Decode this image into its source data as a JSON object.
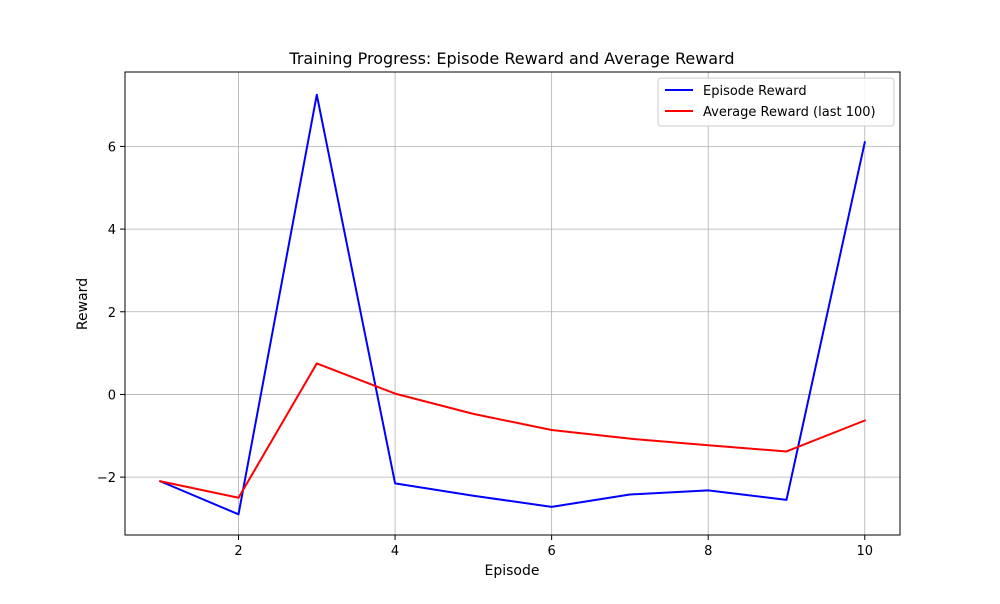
{
  "chart_data": {
    "type": "line",
    "title": "Training Progress: Episode Reward and Average Reward",
    "xlabel": "Episode",
    "ylabel": "Reward",
    "x": [
      1,
      2,
      3,
      4,
      5,
      6,
      7,
      8,
      9,
      10
    ],
    "xlim": [
      0.55,
      10.45
    ],
    "ylim": [
      -3.4,
      7.8
    ],
    "xticks": [
      2,
      4,
      6,
      8,
      10
    ],
    "yticks": [
      -2,
      0,
      2,
      4,
      6
    ],
    "xtick_labels": [
      "2",
      "4",
      "6",
      "8",
      "10"
    ],
    "ytick_labels": [
      "−2",
      "0",
      "2",
      "4",
      "6"
    ],
    "grid": true,
    "legend_position": "top-right",
    "series": [
      {
        "name": "Episode Reward",
        "color": "#0000ff",
        "values": [
          -2.1,
          -2.9,
          7.25,
          -2.15,
          -2.45,
          -2.72,
          -2.42,
          -2.32,
          -2.55,
          6.1
        ]
      },
      {
        "name": "Average Reward (last 100)",
        "color": "#ff0000",
        "values": [
          -2.1,
          -2.5,
          0.75,
          0.02,
          -0.47,
          -0.86,
          -1.07,
          -1.23,
          -1.38,
          -0.63
        ]
      }
    ]
  }
}
